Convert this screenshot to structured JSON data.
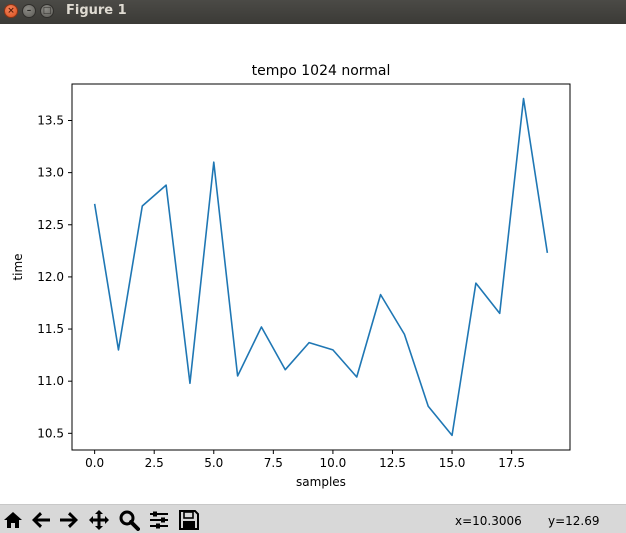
{
  "window": {
    "title": "Figure 1",
    "close_glyph": "×",
    "minimize_glyph": "–",
    "maximize_glyph": "□"
  },
  "toolbar": {
    "buttons": [
      {
        "name": "home",
        "icon": "home-icon"
      },
      {
        "name": "back",
        "icon": "arrow-left-icon"
      },
      {
        "name": "forward",
        "icon": "arrow-right-icon"
      },
      {
        "name": "pan",
        "icon": "move-icon"
      },
      {
        "name": "zoom",
        "icon": "zoom-icon"
      },
      {
        "name": "subplots",
        "icon": "sliders-icon"
      },
      {
        "name": "save",
        "icon": "save-icon"
      }
    ],
    "coord_x": "x=10.3006",
    "coord_y": "y=12.69"
  },
  "chart_data": {
    "type": "line",
    "title": "tempo 1024 normal",
    "xlabel": "samples",
    "ylabel": "time",
    "x": [
      0,
      1,
      2,
      3,
      4,
      5,
      6,
      7,
      8,
      9,
      10,
      11,
      12,
      13,
      14,
      15,
      16,
      17,
      18,
      19
    ],
    "series": [
      {
        "values": [
          12.7,
          11.3,
          12.68,
          12.88,
          10.98,
          13.1,
          11.05,
          11.52,
          11.11,
          11.37,
          11.3,
          11.04,
          11.83,
          11.45,
          10.76,
          10.48,
          11.94,
          11.65,
          13.71,
          12.23
        ],
        "color": "#1f77b4"
      }
    ],
    "xlim": [
      -0.95,
      19.95
    ],
    "ylim": [
      10.34,
      13.85
    ],
    "xticks": [
      0.0,
      2.5,
      5.0,
      7.5,
      10.0,
      12.5,
      15.0,
      17.5
    ],
    "xtick_labels": [
      "0.0",
      "2.5",
      "5.0",
      "7.5",
      "10.0",
      "12.5",
      "15.0",
      "17.5"
    ],
    "yticks": [
      10.5,
      11.0,
      11.5,
      12.0,
      12.5,
      13.0,
      13.5
    ],
    "ytick_labels": [
      "10.5",
      "11.0",
      "11.5",
      "12.0",
      "12.5",
      "13.0",
      "13.5"
    ],
    "grid": false
  }
}
